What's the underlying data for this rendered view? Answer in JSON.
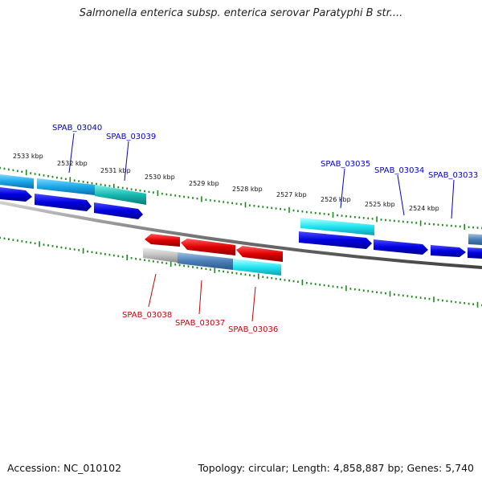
{
  "title": "Salmonella enterica subsp. enterica serovar Paratyphi B str....",
  "accession": "Accession: NC_010102",
  "summary": "Topology: circular; Length: 4,858,887 bp; Genes: 5,740",
  "colors": {
    "forward_label": "#0000cc",
    "reverse_label": "#cc0000",
    "tick": "#1a8a1a",
    "backbone": "#7a7a7a"
  },
  "scale_ticks": [
    "2533 kbp",
    "2532 kbp",
    "2531 kbp",
    "2530 kbp",
    "2529 kbp",
    "2528 kbp",
    "2527 kbp",
    "2526 kbp",
    "2525 kbp",
    "2524 kbp"
  ],
  "genes_forward": [
    {
      "name": "SPAB_03040"
    },
    {
      "name": "SPAB_03039"
    },
    {
      "name": "SPAB_03035"
    },
    {
      "name": "SPAB_03034"
    },
    {
      "name": "SPAB_03033"
    }
  ],
  "genes_reverse": [
    {
      "name": "SPAB_03038"
    },
    {
      "name": "SPAB_03037"
    },
    {
      "name": "SPAB_03036"
    }
  ]
}
